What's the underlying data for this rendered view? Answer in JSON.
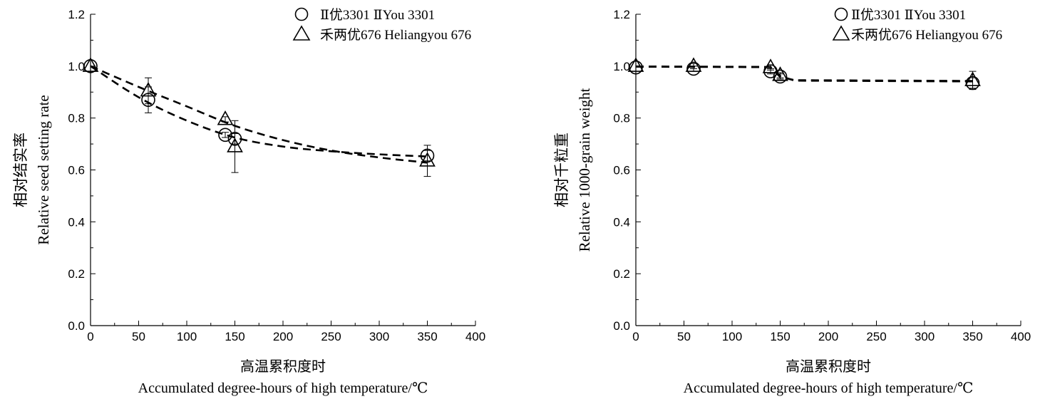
{
  "chart_data": [
    {
      "type": "scatter",
      "title": "",
      "xlabel": [
        "高温累积度时",
        "Accumulated degree-hours of high temperature/℃"
      ],
      "ylabel": [
        "相对结实率",
        "Relative seed setting rate"
      ],
      "xlim": [
        0,
        400
      ],
      "ylim": [
        0.0,
        1.2
      ],
      "xticks": [
        "0",
        "50",
        "100",
        "150",
        "200",
        "250",
        "300",
        "350",
        "400"
      ],
      "yticks": [
        "0.0",
        "0.2",
        "0.4",
        "0.6",
        "0.8",
        "1.0",
        "1.2"
      ],
      "grid": false,
      "legend_position": "top-right",
      "series": [
        {
          "name": "Ⅱ优3301 ⅡYou 3301",
          "marker": "circle",
          "points": [
            {
              "x": 0,
              "y": 1.0,
              "err": 0.0
            },
            {
              "x": 60,
              "y": 0.87,
              "err": 0.05
            },
            {
              "x": 140,
              "y": 0.735,
              "err": 0.01
            },
            {
              "x": 150,
              "y": 0.72,
              "err": 0.02
            },
            {
              "x": 350,
              "y": 0.655,
              "err": 0.02
            }
          ],
          "fit": [
            [
              0,
              1.0
            ],
            [
              50,
              0.88
            ],
            [
              100,
              0.79
            ],
            [
              150,
              0.725
            ],
            [
              200,
              0.69
            ],
            [
              250,
              0.672
            ],
            [
              300,
              0.66
            ],
            [
              350,
              0.652
            ]
          ]
        },
        {
          "name": "禾两优676 Heliangyou 676",
          "marker": "triangle",
          "points": [
            {
              "x": 0,
              "y": 1.0,
              "err": 0.0
            },
            {
              "x": 60,
              "y": 0.905,
              "err": 0.05
            },
            {
              "x": 140,
              "y": 0.795,
              "err": 0.01
            },
            {
              "x": 150,
              "y": 0.69,
              "err": 0.1
            },
            {
              "x": 350,
              "y": 0.635,
              "err": 0.06
            }
          ],
          "fit": [
            [
              0,
              1.0
            ],
            [
              50,
              0.92
            ],
            [
              100,
              0.845
            ],
            [
              150,
              0.77
            ],
            [
              200,
              0.715
            ],
            [
              250,
              0.675
            ],
            [
              300,
              0.648
            ],
            [
              350,
              0.628
            ]
          ]
        }
      ]
    },
    {
      "type": "scatter",
      "title": "",
      "xlabel": [
        "高温累积度时",
        "Accumulated degree-hours of high temperature/℃"
      ],
      "ylabel": [
        "相对千粒重",
        "Relative 1000-grain weight"
      ],
      "xlim": [
        0,
        400
      ],
      "ylim": [
        0.0,
        1.2
      ],
      "xticks": [
        "0",
        "50",
        "100",
        "150",
        "200",
        "250",
        "300",
        "350",
        "400"
      ],
      "yticks": [
        "0.0",
        "0.2",
        "0.4",
        "0.6",
        "0.8",
        "1.0",
        "1.2"
      ],
      "grid": false,
      "legend_position": "top-right",
      "series": [
        {
          "name": "Ⅱ优3301 ⅡYou 3301",
          "marker": "circle",
          "points": [
            {
              "x": 0,
              "y": 0.995,
              "err": 0.0
            },
            {
              "x": 60,
              "y": 0.99,
              "err": 0.01
            },
            {
              "x": 140,
              "y": 0.98,
              "err": 0.01
            },
            {
              "x": 150,
              "y": 0.96,
              "err": 0.01
            },
            {
              "x": 350,
              "y": 0.935,
              "err": 0.02
            }
          ],
          "fit": [
            [
              0,
              0.998
            ],
            [
              140,
              0.996
            ],
            [
              150,
              0.958
            ],
            [
              165,
              0.946
            ],
            [
              350,
              0.943
            ]
          ]
        },
        {
          "name": "禾两优676 Heliangyou 676",
          "marker": "triangle",
          "points": [
            {
              "x": 0,
              "y": 1.0,
              "err": 0.0
            },
            {
              "x": 60,
              "y": 1.0,
              "err": 0.01
            },
            {
              "x": 140,
              "y": 0.995,
              "err": 0.01
            },
            {
              "x": 150,
              "y": 0.965,
              "err": 0.01
            },
            {
              "x": 350,
              "y": 0.945,
              "err": 0.035
            }
          ],
          "fit": [
            [
              0,
              0.999
            ],
            [
              140,
              0.997
            ],
            [
              150,
              0.962
            ],
            [
              165,
              0.944
            ],
            [
              350,
              0.941
            ]
          ]
        }
      ]
    }
  ]
}
